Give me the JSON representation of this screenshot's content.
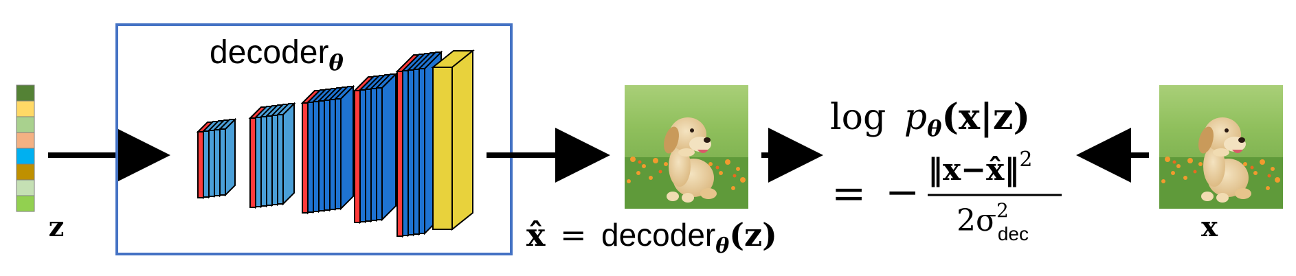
{
  "latent": {
    "label": "z",
    "colors": [
      "#548235",
      "#ffd966",
      "#a9d18e",
      "#f4b183",
      "#00b0f0",
      "#bf9000",
      "#c5e0b4",
      "#92d050"
    ]
  },
  "decoder": {
    "title_text": "decoder",
    "title_sub": "θ",
    "border_color": "#4472c4",
    "layer_red": "#ff3b3b",
    "layer_blue_1": "#4a9fd8",
    "layer_blue_2": "#1e73d2",
    "output_yellow": "#e8d23c"
  },
  "xhat_eq": {
    "lhs": "x̂",
    "equals": "=",
    "fn": "decoder",
    "sub": "θ",
    "arg": "(z)"
  },
  "loss": {
    "log": "log",
    "p": "p",
    "p_sub": "θ",
    "args": "(x|z)",
    "equals": "=",
    "minus": "−",
    "numerator": "‖x−x̂‖",
    "numerator_sup": "2",
    "denom_base": "2σ",
    "denom_sup": "2",
    "denom_sub": "dec"
  },
  "target": {
    "label": "x"
  },
  "images": {
    "generated": "puppy-image",
    "observed": "puppy-image"
  }
}
